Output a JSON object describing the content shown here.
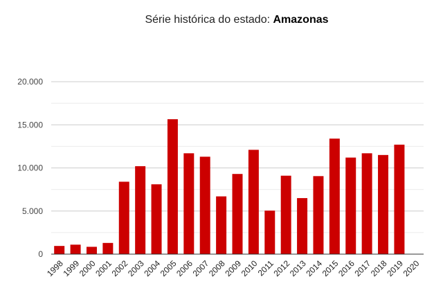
{
  "chart_data": {
    "type": "bar",
    "title_prefix": "Série histórica do estado: ",
    "title_state": "Amazonas",
    "xlabel": "",
    "ylabel": "",
    "ylim": [
      0,
      20000
    ],
    "yticks": [
      0,
      5000,
      10000,
      15000,
      20000
    ],
    "ytick_labels": [
      "0",
      "5.000",
      "10.000",
      "15.000",
      "20.000"
    ],
    "grid": true,
    "bar_color": "#cc0000",
    "categories": [
      "1998",
      "1999",
      "2000",
      "2001",
      "2002",
      "2003",
      "2004",
      "2005",
      "2006",
      "2007",
      "2008",
      "2009",
      "2010",
      "2011",
      "2012",
      "2013",
      "2014",
      "2015",
      "2016",
      "2017",
      "2018",
      "2019",
      "2020"
    ],
    "values": [
      950,
      1100,
      850,
      1300,
      8400,
      10200,
      8100,
      15650,
      11700,
      11300,
      6700,
      9300,
      12100,
      5050,
      9100,
      6500,
      9050,
      13400,
      11200,
      11700,
      11500,
      12700,
      null
    ]
  }
}
